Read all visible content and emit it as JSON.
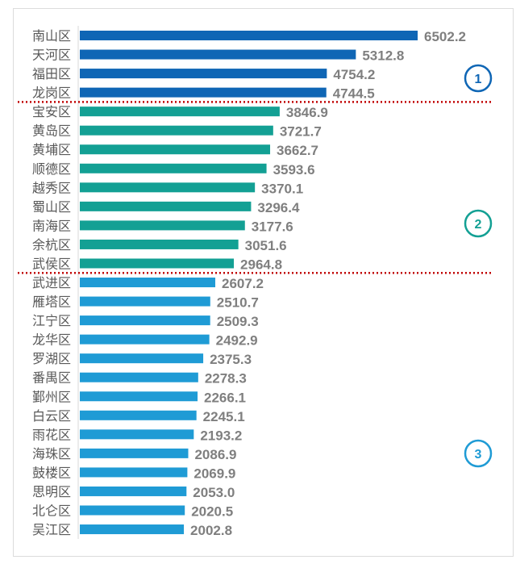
{
  "chart_data": {
    "type": "bar",
    "orientation": "horizontal",
    "title": "",
    "xlabel": "",
    "ylabel": "",
    "xlim": [
      0,
      6502.2
    ],
    "grid": false,
    "categories": [
      "南山区",
      "天河区",
      "福田区",
      "龙岗区",
      "宝安区",
      "黄岛区",
      "黄埔区",
      "顺德区",
      "越秀区",
      "蜀山区",
      "南海区",
      "余杭区",
      "武侯区",
      "武进区",
      "雁塔区",
      "江宁区",
      "龙华区",
      "罗湖区",
      "番禺区",
      "鄞州区",
      "白云区",
      "雨花区",
      "海珠区",
      "鼓楼区",
      "思明区",
      "北仑区",
      "吴江区"
    ],
    "values": [
      6502.2,
      5312.8,
      4754.2,
      4744.5,
      3846.9,
      3721.7,
      3662.7,
      3593.6,
      3370.1,
      3296.4,
      3177.6,
      3051.6,
      2964.8,
      2607.2,
      2510.7,
      2509.3,
      2492.9,
      2375.3,
      2278.3,
      2266.1,
      2245.1,
      2193.2,
      2086.9,
      2069.9,
      2053.0,
      2020.5,
      2002.8
    ],
    "value_labels": [
      "6502.2",
      "5312.8",
      "4754.2",
      "4744.5",
      "3846.9",
      "3721.7",
      "3662.7",
      "3593.6",
      "3370.1",
      "3296.4",
      "3177.6",
      "3051.6",
      "2964.8",
      "2607.2",
      "2510.7",
      "2509.3",
      "2492.9",
      "2375.3",
      "2278.3",
      "2266.1",
      "2245.1",
      "2193.2",
      "2086.9",
      "2069.9",
      "2053.0",
      "2020.5",
      "2002.8"
    ],
    "groups": [
      {
        "label": "1",
        "start": 0,
        "end": 3,
        "color": "#0f66b5"
      },
      {
        "label": "2",
        "start": 4,
        "end": 12,
        "color": "#13a094"
      },
      {
        "label": "3",
        "start": 13,
        "end": 26,
        "color": "#1f9bd5"
      }
    ],
    "separator_color": "#c00000",
    "label_color": "#7f7f7f"
  }
}
